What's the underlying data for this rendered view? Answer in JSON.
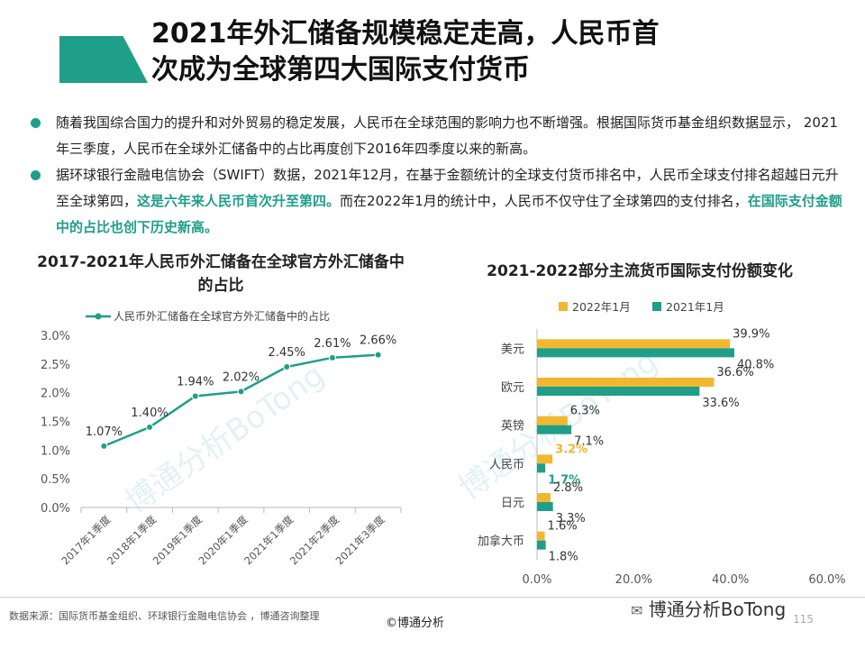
{
  "title": {
    "line1": "2021年外汇储备规模稳定走高，人民币首",
    "line2": "次成为全球第四大国际支付货币"
  },
  "bullets": [
    {
      "text": "随着我国综合国力的提升和对外贸易的稳定发展，人民币在全球范围的影响力也不断增强。根据国际货币基金组织数据显示， 2021年三季度，人民币在全球外汇储备中的占比再度创下2016年四季度以来的新高。"
    },
    {
      "text_a": "据环球银行金融电信协会（SWIFT）数据，2021年12月，在基于金额统计的全球支付货币排名中，人民币全球支付排名超越日元升至全球第四，",
      "highlight_1": "这是六年来人民币首次升至第四。",
      "text_b": "而在2022年1月的统计中，人民币不仅守住了全球第四的支付排名，",
      "highlight_2": "在国际支付金额中的占比也创下历史新高。"
    }
  ],
  "chart_data": [
    {
      "type": "line",
      "title": "2017-2021年人民币外汇储备在全球官方外汇储备中的占比",
      "legend": "人民币外汇储备在全球官方外汇储备中的占比",
      "categories": [
        "2017年1季度",
        "2018年1季度",
        "2019年1季度",
        "2020年1季度",
        "2021年1季度",
        "2021年2季度",
        "2021年3季度"
      ],
      "values": [
        1.07,
        1.4,
        1.94,
        2.02,
        2.45,
        2.61,
        2.66
      ],
      "value_labels": [
        "1.07%",
        "1.40%",
        "1.94%",
        "2.02%",
        "2.45%",
        "2.61%",
        "2.66%"
      ],
      "yticks": [
        "0.0%",
        "0.5%",
        "1.0%",
        "1.5%",
        "2.0%",
        "2.5%",
        "3.0%"
      ],
      "ylim": [
        0,
        3.0
      ],
      "color": "#1f9e8a"
    },
    {
      "type": "bar",
      "orientation": "horizontal",
      "title": "2021-2022部分主流货币国际支付份额变化",
      "categories": [
        "美元",
        "欧元",
        "英镑",
        "人民币",
        "日元",
        "加拿大币"
      ],
      "series": [
        {
          "name": "2022年1月",
          "color": "#f2b731",
          "values": [
            39.9,
            36.6,
            6.3,
            3.2,
            2.8,
            1.6
          ],
          "labels": [
            "39.9%",
            "36.6%",
            "6.3%",
            "3.2%",
            "2.8%",
            "1.6%"
          ]
        },
        {
          "name": "2021年1月",
          "color": "#1f9e8a",
          "values": [
            40.8,
            33.6,
            7.1,
            1.7,
            3.3,
            1.8
          ],
          "labels": [
            "40.8%",
            "33.6%",
            "7.1%",
            "1.7%",
            "3.3%",
            "1.8%"
          ]
        }
      ],
      "xticks": [
        "0.0%",
        "20.0%",
        "40.0%",
        "60.0%"
      ],
      "xlim": [
        0,
        60
      ]
    }
  ],
  "footer": {
    "source": "数据来源：国际货币基金组织、环球银行金融电信协会 ，博通咨询整理",
    "copyright": "©博通分析",
    "brand": "博通分析BoTong",
    "page": "115"
  },
  "watermark": "博通分析BoTong",
  "colors": {
    "accent": "#1f9e8a",
    "gold": "#f2b731"
  }
}
